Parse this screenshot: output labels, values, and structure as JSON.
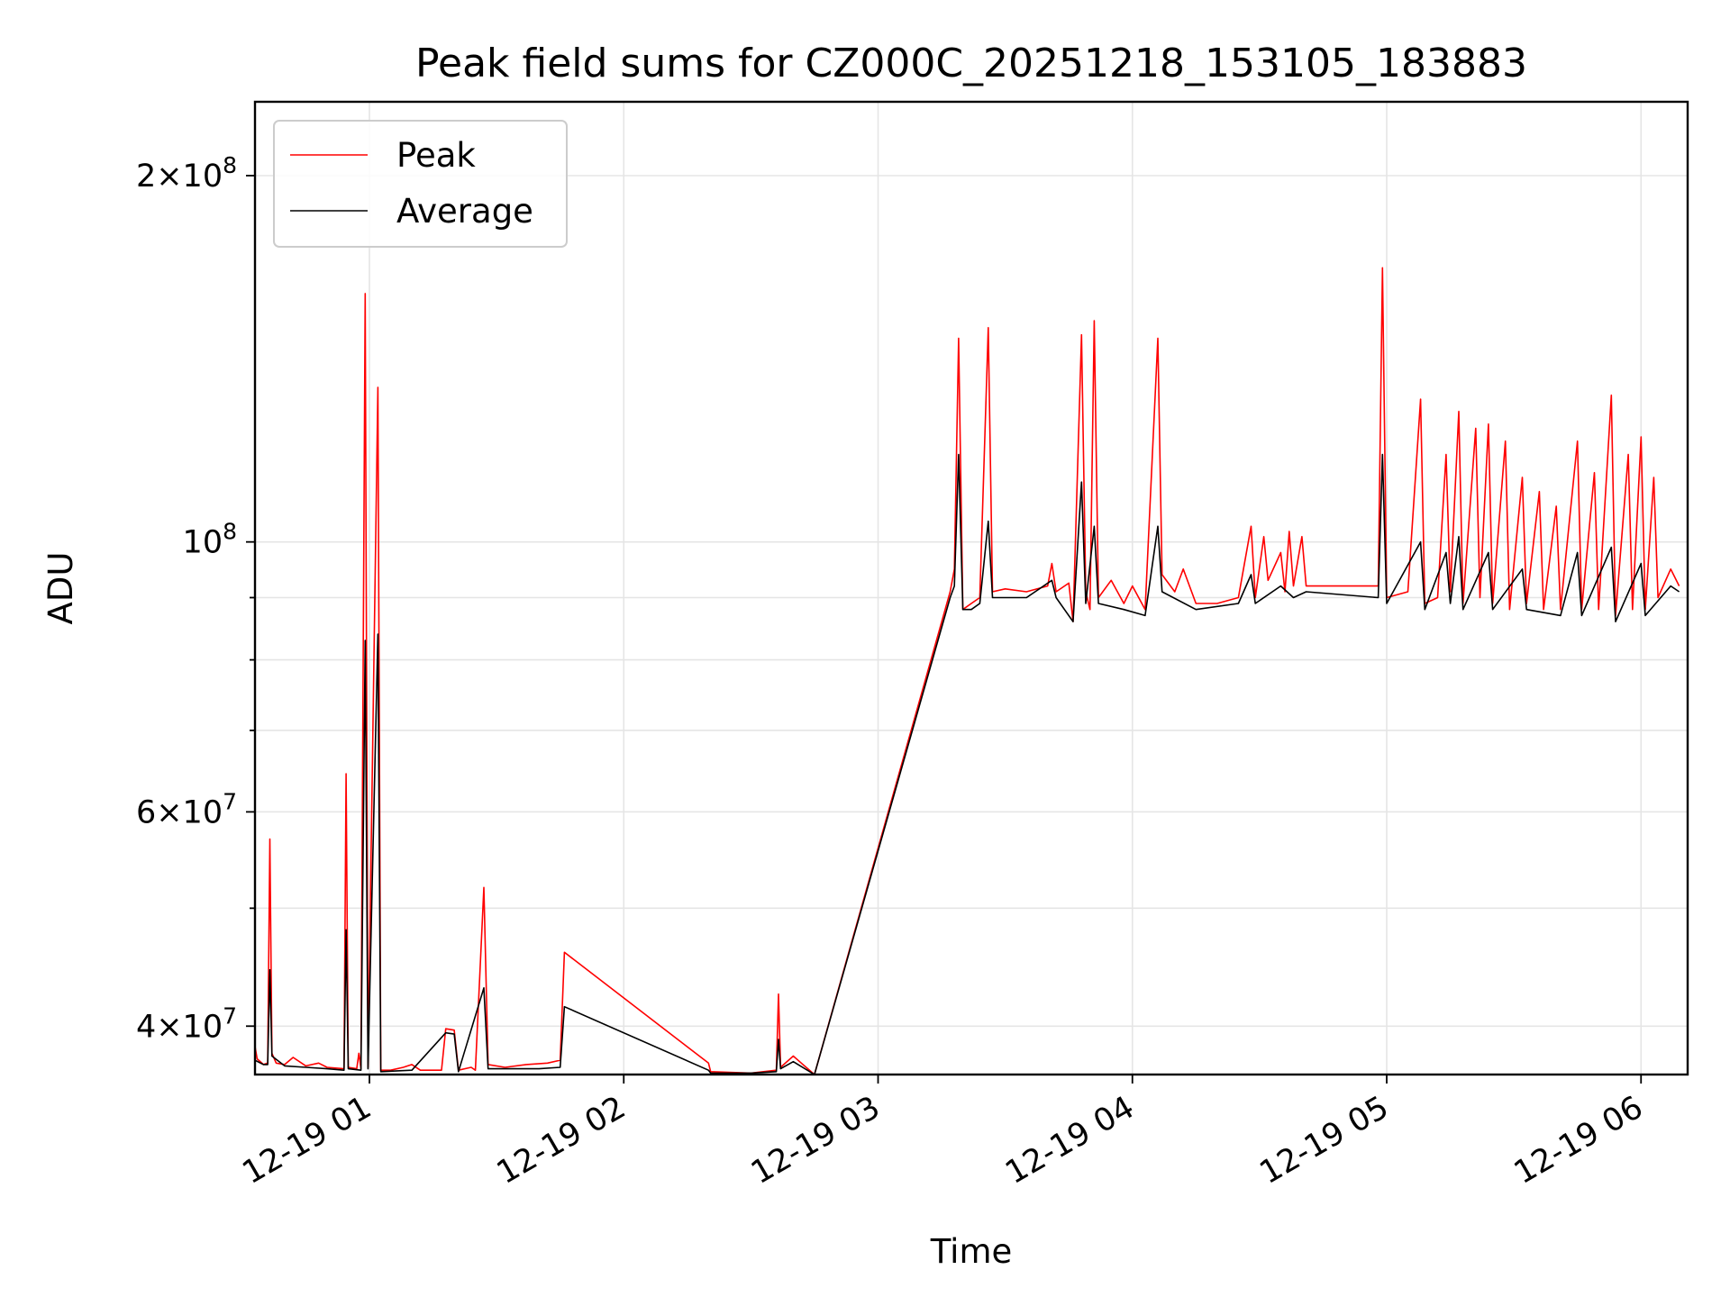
{
  "chart_data": {
    "type": "line",
    "title": "Peak field sums for CZ000C_20251218_153105_183883",
    "xlabel": "Time",
    "ylabel": "ADU",
    "yscale": "log",
    "ylim": [
      36500000,
      230000000
    ],
    "xlim": [
      "2025-12-19T00:33",
      "2025-12-19T06:11"
    ],
    "grid": true,
    "legend_position": "top-left",
    "x_tick_labels": [
      "12-19 01",
      "12-19 02",
      "12-19 03",
      "12-19 04",
      "12-19 05",
      "12-19 06"
    ],
    "y_major_tick_labels": [
      {
        "mantissa": "4",
        "exp": "7",
        "value": 40000000
      },
      {
        "mantissa": "6",
        "exp": "7",
        "value": 60000000
      },
      {
        "mantissa": "",
        "exp": "8",
        "value": 100000000
      },
      {
        "mantissa": "2",
        "exp": "8",
        "value": 200000000
      }
    ],
    "y_minor_ticks": [
      50000000,
      70000000,
      80000000,
      90000000
    ],
    "series": [
      {
        "name": "Peak",
        "color": "#ff0000",
        "points": [
          [
            "2025-12-19T00:33",
            38500000
          ],
          [
            "2025-12-19T00:33:30",
            37600000
          ],
          [
            "2025-12-19T00:35",
            37200000
          ],
          [
            "2025-12-19T00:36",
            37300000
          ],
          [
            "2025-12-19T00:36:30",
            57000000
          ],
          [
            "2025-12-19T00:37",
            38000000
          ],
          [
            "2025-12-19T00:38",
            37300000
          ],
          [
            "2025-12-19T00:40",
            37200000
          ],
          [
            "2025-12-19T00:42",
            37700000
          ],
          [
            "2025-12-19T00:45",
            37100000
          ],
          [
            "2025-12-19T00:48",
            37300000
          ],
          [
            "2025-12-19T00:50",
            37000000
          ],
          [
            "2025-12-19T00:54",
            36900000
          ],
          [
            "2025-12-19T00:54:30",
            64500000
          ],
          [
            "2025-12-19T00:55",
            37000000
          ],
          [
            "2025-12-19T00:57",
            36900000
          ],
          [
            "2025-12-19T00:57:30",
            38000000
          ],
          [
            "2025-12-19T00:58",
            36900000
          ],
          [
            "2025-12-19T00:59",
            160000000
          ],
          [
            "2025-12-19T00:59:40",
            37000000
          ],
          [
            "2025-12-19T01:02",
            134000000
          ],
          [
            "2025-12-19T01:02:40",
            36800000
          ],
          [
            "2025-12-19T01:05",
            36800000
          ],
          [
            "2025-12-19T01:08",
            37000000
          ],
          [
            "2025-12-19T01:10",
            37200000
          ],
          [
            "2025-12-19T01:12",
            36800000
          ],
          [
            "2025-12-19T01:15",
            36800000
          ],
          [
            "2025-12-19T01:17",
            36800000
          ],
          [
            "2025-12-19T01:18",
            39800000
          ],
          [
            "2025-12-19T01:20",
            39700000
          ],
          [
            "2025-12-19T01:21",
            36800000
          ],
          [
            "2025-12-19T01:24",
            37000000
          ],
          [
            "2025-12-19T01:25",
            36800000
          ],
          [
            "2025-12-19T01:27",
            52000000
          ],
          [
            "2025-12-19T01:28",
            37200000
          ],
          [
            "2025-12-19T01:32",
            37000000
          ],
          [
            "2025-12-19T01:37",
            37200000
          ],
          [
            "2025-12-19T01:42",
            37300000
          ],
          [
            "2025-12-19T01:45",
            37500000
          ],
          [
            "2025-12-19T01:46",
            46000000
          ],
          [
            "2025-12-19T02:20",
            37300000
          ],
          [
            "2025-12-19T02:20:30",
            36700000
          ],
          [
            "2025-12-19T02:30",
            36600000
          ],
          [
            "2025-12-19T02:36",
            36800000
          ],
          [
            "2025-12-19T02:36:30",
            42500000
          ],
          [
            "2025-12-19T02:37",
            37000000
          ],
          [
            "2025-12-19T02:40",
            37800000
          ],
          [
            "2025-12-19T02:45",
            36500000
          ],
          [
            "2025-12-19T03:17",
            91000000
          ],
          [
            "2025-12-19T03:18",
            95000000
          ],
          [
            "2025-12-19T03:19",
            147000000
          ],
          [
            "2025-12-19T03:20",
            88000000
          ],
          [
            "2025-12-19T03:22",
            89000000
          ],
          [
            "2025-12-19T03:24",
            90000000
          ],
          [
            "2025-12-19T03:26",
            150000000
          ],
          [
            "2025-12-19T03:27",
            91000000
          ],
          [
            "2025-12-19T03:30",
            91500000
          ],
          [
            "2025-12-19T03:35",
            91000000
          ],
          [
            "2025-12-19T03:40",
            92000000
          ],
          [
            "2025-12-19T03:41",
            96000000
          ],
          [
            "2025-12-19T03:42",
            91000000
          ],
          [
            "2025-12-19T03:45",
            92500000
          ],
          [
            "2025-12-19T03:46",
            86000000
          ],
          [
            "2025-12-19T03:48",
            148000000
          ],
          [
            "2025-12-19T03:49",
            91000000
          ],
          [
            "2025-12-19T03:50",
            88000000
          ],
          [
            "2025-12-19T03:51",
            152000000
          ],
          [
            "2025-12-19T03:52",
            90000000
          ],
          [
            "2025-12-19T03:55",
            93000000
          ],
          [
            "2025-12-19T03:58",
            89000000
          ],
          [
            "2025-12-19T04:00",
            92000000
          ],
          [
            "2025-12-19T04:03",
            88000000
          ],
          [
            "2025-12-19T04:06",
            147000000
          ],
          [
            "2025-12-19T04:07",
            94000000
          ],
          [
            "2025-12-19T04:10",
            91000000
          ],
          [
            "2025-12-19T04:12",
            95000000
          ],
          [
            "2025-12-19T04:15",
            89000000
          ],
          [
            "2025-12-19T04:20",
            89000000
          ],
          [
            "2025-12-19T04:25",
            90000000
          ],
          [
            "2025-12-19T04:28",
            103000000
          ],
          [
            "2025-12-19T04:29",
            90000000
          ],
          [
            "2025-12-19T04:31",
            101000000
          ],
          [
            "2025-12-19T04:32",
            93000000
          ],
          [
            "2025-12-19T04:35",
            98000000
          ],
          [
            "2025-12-19T04:36",
            91000000
          ],
          [
            "2025-12-19T04:37",
            102000000
          ],
          [
            "2025-12-19T04:38",
            92000000
          ],
          [
            "2025-12-19T04:40",
            101000000
          ],
          [
            "2025-12-19T04:41",
            92000000
          ],
          [
            "2025-12-19T04:58",
            92000000
          ],
          [
            "2025-12-19T04:59",
            168000000
          ],
          [
            "2025-12-19T05:00",
            90000000
          ],
          [
            "2025-12-19T05:05",
            91000000
          ],
          [
            "2025-12-19T05:08",
            131000000
          ],
          [
            "2025-12-19T05:09",
            89000000
          ],
          [
            "2025-12-19T05:12",
            90000000
          ],
          [
            "2025-12-19T05:14",
            118000000
          ],
          [
            "2025-12-19T05:15",
            91000000
          ],
          [
            "2025-12-19T05:17",
            128000000
          ],
          [
            "2025-12-19T05:18",
            89000000
          ],
          [
            "2025-12-19T05:21",
            124000000
          ],
          [
            "2025-12-19T05:22",
            90000000
          ],
          [
            "2025-12-19T05:24",
            125000000
          ],
          [
            "2025-12-19T05:25",
            89000000
          ],
          [
            "2025-12-19T05:28",
            121000000
          ],
          [
            "2025-12-19T05:29",
            88000000
          ],
          [
            "2025-12-19T05:32",
            113000000
          ],
          [
            "2025-12-19T05:33",
            89000000
          ],
          [
            "2025-12-19T05:36",
            110000000
          ],
          [
            "2025-12-19T05:37",
            88000000
          ],
          [
            "2025-12-19T05:40",
            107000000
          ],
          [
            "2025-12-19T05:41",
            88000000
          ],
          [
            "2025-12-19T05:45",
            121000000
          ],
          [
            "2025-12-19T05:46",
            88000000
          ],
          [
            "2025-12-19T05:49",
            114000000
          ],
          [
            "2025-12-19T05:50",
            88000000
          ],
          [
            "2025-12-19T05:53",
            132000000
          ],
          [
            "2025-12-19T05:54",
            87000000
          ],
          [
            "2025-12-19T05:57",
            118000000
          ],
          [
            "2025-12-19T05:58",
            88000000
          ],
          [
            "2025-12-19T06:00",
            122000000
          ],
          [
            "2025-12-19T06:01",
            88000000
          ],
          [
            "2025-12-19T06:03",
            113000000
          ],
          [
            "2025-12-19T06:04",
            90000000
          ],
          [
            "2025-12-19T06:07",
            95000000
          ],
          [
            "2025-12-19T06:09",
            92000000
          ]
        ]
      },
      {
        "name": "Average",
        "color": "#000000",
        "points": [
          [
            "2025-12-19T00:33",
            37500000
          ],
          [
            "2025-12-19T00:35",
            37200000
          ],
          [
            "2025-12-19T00:36",
            37200000
          ],
          [
            "2025-12-19T00:36:30",
            44500000
          ],
          [
            "2025-12-19T00:37",
            37800000
          ],
          [
            "2025-12-19T00:40",
            37100000
          ],
          [
            "2025-12-19T00:45",
            37000000
          ],
          [
            "2025-12-19T00:50",
            36900000
          ],
          [
            "2025-12-19T00:54",
            36800000
          ],
          [
            "2025-12-19T00:54:30",
            48000000
          ],
          [
            "2025-12-19T00:55",
            36900000
          ],
          [
            "2025-12-19T00:58",
            36800000
          ],
          [
            "2025-12-19T00:59",
            83000000
          ],
          [
            "2025-12-19T00:59:40",
            36900000
          ],
          [
            "2025-12-19T01:02",
            84000000
          ],
          [
            "2025-12-19T01:02:40",
            36700000
          ],
          [
            "2025-12-19T01:10",
            36800000
          ],
          [
            "2025-12-19T01:18",
            39500000
          ],
          [
            "2025-12-19T01:20",
            39400000
          ],
          [
            "2025-12-19T01:21",
            36700000
          ],
          [
            "2025-12-19T01:27",
            43000000
          ],
          [
            "2025-12-19T01:28",
            36900000
          ],
          [
            "2025-12-19T01:40",
            36900000
          ],
          [
            "2025-12-19T01:45",
            37000000
          ],
          [
            "2025-12-19T01:46",
            41500000
          ],
          [
            "2025-12-19T02:20",
            36800000
          ],
          [
            "2025-12-19T02:20:30",
            36600000
          ],
          [
            "2025-12-19T02:30",
            36600000
          ],
          [
            "2025-12-19T02:36",
            36700000
          ],
          [
            "2025-12-19T02:36:30",
            39000000
          ],
          [
            "2025-12-19T02:37",
            36900000
          ],
          [
            "2025-12-19T02:40",
            37400000
          ],
          [
            "2025-12-19T02:45",
            36500000
          ],
          [
            "2025-12-19T03:17",
            90000000
          ],
          [
            "2025-12-19T03:18",
            92000000
          ],
          [
            "2025-12-19T03:19",
            118000000
          ],
          [
            "2025-12-19T03:20",
            88000000
          ],
          [
            "2025-12-19T03:22",
            88000000
          ],
          [
            "2025-12-19T03:24",
            89000000
          ],
          [
            "2025-12-19T03:26",
            104000000
          ],
          [
            "2025-12-19T03:27",
            90000000
          ],
          [
            "2025-12-19T03:35",
            90000000
          ],
          [
            "2025-12-19T03:41",
            93000000
          ],
          [
            "2025-12-19T03:42",
            90000000
          ],
          [
            "2025-12-19T03:46",
            86000000
          ],
          [
            "2025-12-19T03:48",
            112000000
          ],
          [
            "2025-12-19T03:49",
            89000000
          ],
          [
            "2025-12-19T03:51",
            103000000
          ],
          [
            "2025-12-19T03:52",
            89000000
          ],
          [
            "2025-12-19T03:58",
            88000000
          ],
          [
            "2025-12-19T04:03",
            87000000
          ],
          [
            "2025-12-19T04:06",
            103000000
          ],
          [
            "2025-12-19T04:07",
            91000000
          ],
          [
            "2025-12-19T04:15",
            88000000
          ],
          [
            "2025-12-19T04:25",
            89000000
          ],
          [
            "2025-12-19T04:28",
            94000000
          ],
          [
            "2025-12-19T04:29",
            89000000
          ],
          [
            "2025-12-19T04:35",
            92000000
          ],
          [
            "2025-12-19T04:38",
            90000000
          ],
          [
            "2025-12-19T04:41",
            91000000
          ],
          [
            "2025-12-19T04:58",
            90000000
          ],
          [
            "2025-12-19T04:59",
            118000000
          ],
          [
            "2025-12-19T05:00",
            89000000
          ],
          [
            "2025-12-19T05:08",
            100000000
          ],
          [
            "2025-12-19T05:09",
            88000000
          ],
          [
            "2025-12-19T05:14",
            98000000
          ],
          [
            "2025-12-19T05:15",
            89000000
          ],
          [
            "2025-12-19T05:17",
            101000000
          ],
          [
            "2025-12-19T05:18",
            88000000
          ],
          [
            "2025-12-19T05:24",
            98000000
          ],
          [
            "2025-12-19T05:25",
            88000000
          ],
          [
            "2025-12-19T05:32",
            95000000
          ],
          [
            "2025-12-19T05:33",
            88000000
          ],
          [
            "2025-12-19T05:41",
            87000000
          ],
          [
            "2025-12-19T05:45",
            98000000
          ],
          [
            "2025-12-19T05:46",
            87000000
          ],
          [
            "2025-12-19T05:53",
            99000000
          ],
          [
            "2025-12-19T05:54",
            86000000
          ],
          [
            "2025-12-19T06:00",
            96000000
          ],
          [
            "2025-12-19T06:01",
            87000000
          ],
          [
            "2025-12-19T06:07",
            92000000
          ],
          [
            "2025-12-19T06:09",
            91000000
          ]
        ]
      }
    ]
  }
}
